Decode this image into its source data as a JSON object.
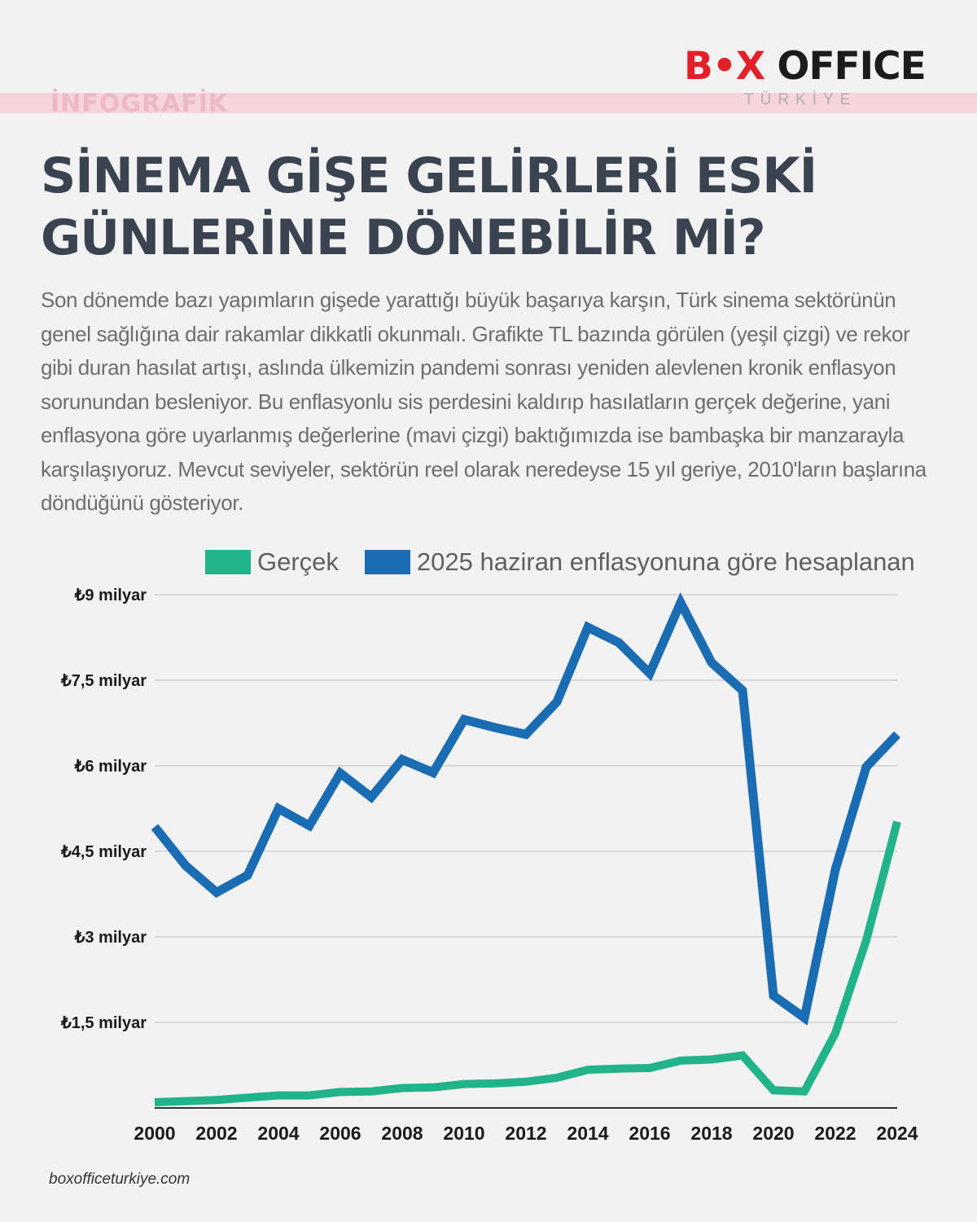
{
  "header": {
    "tag": "İNFOGRAFİK",
    "logo_b": "B",
    "logo_o": "•",
    "logo_x": "X",
    "logo_office": " OFFICE",
    "logo_sub": "TÜRKİYE"
  },
  "title_line1": "SİNEMA GİŞE GELİRLERİ ESKİ",
  "title_line2": "GÜNLERİNE DÖNEBİLİR Mİ?",
  "description": "Son dönemde bazı yapımların gişede yarattığı büyük başarıya karşın, Türk sinema sektörünün genel sağlığına dair rakamlar dikkatli okunmalı. Grafikte TL bazında görülen (yeşil çizgi) ve rekor gibi duran hasılat artışı, aslında ülkemizin pandemi sonrası yeniden alevlenen kronik enflasyon sorunundan besleniyor. Bu enflasyonlu sis perdesini kaldırıp hasılatların gerçek değerine, yani enflasyona göre uyarlanmış değerlerine (mavi çizgi) baktığımızda ise bambaşka bir manzarayla karşılaşıyoruz. Mevcut seviyeler, sektörün reel olarak neredeyse 15 yıl geriye, 2010'ların başlarına döndüğünü gösteriyor.",
  "footer": "boxofficeturkiye.com",
  "colors": {
    "green": "#21b38a",
    "blue": "#1b6db3",
    "logo_red": "#e32028"
  },
  "chart_data": {
    "type": "line",
    "x": [
      2000,
      2001,
      2002,
      2003,
      2004,
      2005,
      2006,
      2007,
      2008,
      2009,
      2010,
      2011,
      2012,
      2013,
      2014,
      2015,
      2016,
      2017,
      2018,
      2019,
      2020,
      2021,
      2022,
      2023,
      2024
    ],
    "x_tick_labels": [
      "2000",
      "2002",
      "2004",
      "2006",
      "2008",
      "2010",
      "2012",
      "2014",
      "2016",
      "2018",
      "2020",
      "2022",
      "2024"
    ],
    "y_ticks": [
      1.5,
      3,
      4.5,
      6,
      7.5,
      9
    ],
    "y_tick_labels": [
      "₺1,5 milyar",
      "₺3 milyar",
      "₺4,5 milyar",
      "₺6 milyar",
      "₺7,5 milyar",
      "₺9 milyar"
    ],
    "ylim": [
      0,
      9
    ],
    "grid": true,
    "legend_position": "top",
    "series": [
      {
        "name": "Gerçek",
        "color": "#21b38a",
        "values": [
          0.1,
          0.12,
          0.14,
          0.18,
          0.22,
          0.22,
          0.28,
          0.29,
          0.35,
          0.36,
          0.42,
          0.43,
          0.46,
          0.53,
          0.67,
          0.69,
          0.7,
          0.83,
          0.85,
          0.92,
          0.31,
          0.29,
          1.31,
          2.94,
          5.02
        ]
      },
      {
        "name": "2025 haziran enflasyonuna göre hesaplanan",
        "color": "#1b6db3",
        "values": [
          4.93,
          4.25,
          3.78,
          4.08,
          5.25,
          4.95,
          5.87,
          5.45,
          6.11,
          5.88,
          6.81,
          6.67,
          6.55,
          7.12,
          8.43,
          8.16,
          7.62,
          8.86,
          7.81,
          7.32,
          1.97,
          1.58,
          4.18,
          5.98,
          6.55
        ]
      }
    ]
  }
}
